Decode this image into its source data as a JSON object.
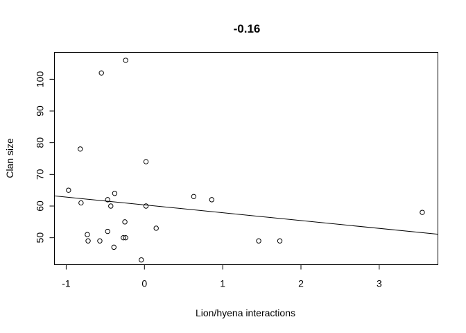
{
  "chart_data": {
    "type": "scatter",
    "title": "-0.16",
    "xlabel": "Lion/hyena interactions",
    "ylabel": "Clan size",
    "xlim": [
      -1.15,
      3.75
    ],
    "ylim": [
      41.5,
      108.5
    ],
    "xticks": [
      -1,
      0,
      1,
      2,
      3
    ],
    "yticks": [
      50,
      60,
      70,
      80,
      90,
      100
    ],
    "grid": false,
    "points": [
      {
        "x": -0.97,
        "y": 65
      },
      {
        "x": -0.82,
        "y": 78
      },
      {
        "x": -0.81,
        "y": 61
      },
      {
        "x": -0.73,
        "y": 51
      },
      {
        "x": -0.72,
        "y": 49
      },
      {
        "x": -0.57,
        "y": 49
      },
      {
        "x": -0.55,
        "y": 102
      },
      {
        "x": -0.47,
        "y": 52
      },
      {
        "x": -0.47,
        "y": 62
      },
      {
        "x": -0.43,
        "y": 60
      },
      {
        "x": -0.39,
        "y": 47
      },
      {
        "x": -0.38,
        "y": 64
      },
      {
        "x": -0.27,
        "y": 50
      },
      {
        "x": -0.25,
        "y": 55
      },
      {
        "x": -0.24,
        "y": 50
      },
      {
        "x": -0.24,
        "y": 106
      },
      {
        "x": -0.04,
        "y": 43
      },
      {
        "x": 0.02,
        "y": 60
      },
      {
        "x": 0.02,
        "y": 74
      },
      {
        "x": 0.15,
        "y": 53
      },
      {
        "x": 0.63,
        "y": 63
      },
      {
        "x": 0.86,
        "y": 62
      },
      {
        "x": 1.46,
        "y": 49
      },
      {
        "x": 1.73,
        "y": 49
      },
      {
        "x": 3.55,
        "y": 58
      }
    ],
    "fit_line": {
      "x1": -1.15,
      "y1": 63.2,
      "x2": 3.75,
      "y2": 51.1
    }
  }
}
